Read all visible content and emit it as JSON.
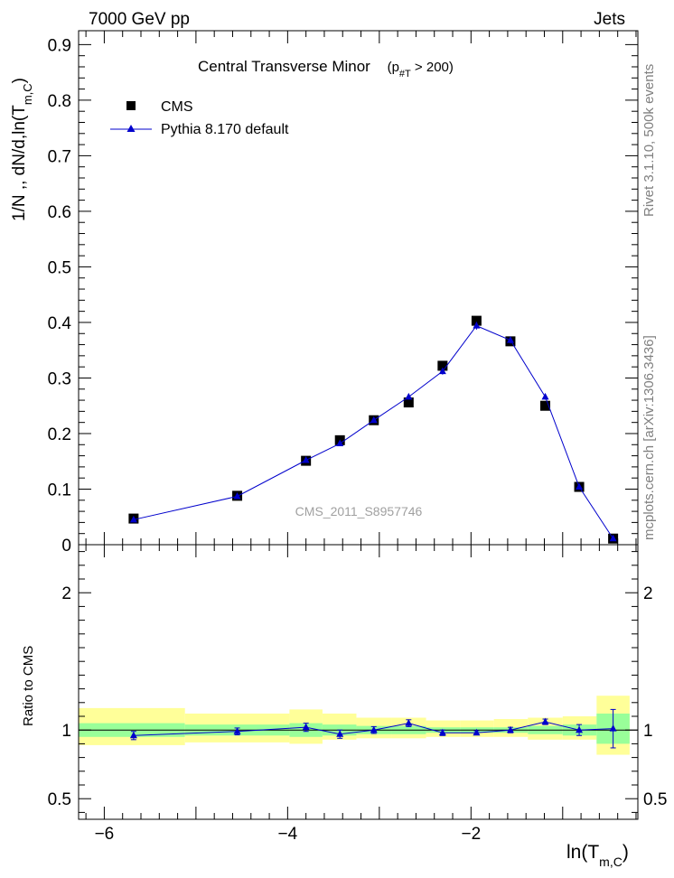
{
  "header": {
    "left": "7000 GeV pp",
    "right": "Jets"
  },
  "side_labels": {
    "rivet": "Rivet 3.1.10,  500k events",
    "mcplots": "mcplots.cern.ch [arXiv:1306.3436]"
  },
  "watermark": "CMS_2011_S8957746",
  "colors": {
    "mc": "#0000cc",
    "data": "#000000",
    "band_inner": "#99ff99",
    "band_outer": "#ffff99"
  },
  "chart_data": [
    {
      "type": "scatter",
      "panel": "main",
      "title": "Central Transverse Minor",
      "title_cut": "(p",
      "title_cut_sub": "#T",
      "title_cut_tail": " > 200)",
      "ylabel": "1/N ,, dN/d,ln(T",
      "ylabel_sub": "m,C",
      "ylabel_tail": ")",
      "ylim": [
        0,
        0.925
      ],
      "xlim": [
        -6.28,
        -0.18
      ],
      "y_ticks": [
        0,
        0.1,
        0.2,
        0.3,
        0.4,
        0.5,
        0.6,
        0.7,
        0.8,
        0.9
      ],
      "y_tick_labels": [
        "0",
        "0.1",
        "0.2",
        "0.3",
        "0.4",
        "0.5",
        "0.6",
        "0.7",
        "0.8",
        "0.9"
      ],
      "legend": {
        "position": "top-left",
        "data_label": "CMS",
        "mc_label": "Pythia 8.170 default"
      },
      "series": [
        {
          "name": "CMS",
          "style": "square",
          "x": [
            -5.68,
            -4.55,
            -3.8,
            -3.43,
            -3.06,
            -2.68,
            -2.31,
            -1.94,
            -1.57,
            -1.19,
            -0.82,
            -0.45
          ],
          "y": [
            0.047,
            0.088,
            0.151,
            0.188,
            0.224,
            0.256,
            0.322,
            0.403,
            0.366,
            0.25,
            0.104,
            0.011
          ]
        },
        {
          "name": "Pythia 8.170 default",
          "style": "triangle-line",
          "x": [
            -5.68,
            -4.55,
            -3.8,
            -3.43,
            -3.06,
            -2.68,
            -2.31,
            -1.94,
            -1.57,
            -1.19,
            -0.82,
            -0.45
          ],
          "y": [
            0.045,
            0.087,
            0.152,
            0.182,
            0.224,
            0.266,
            0.312,
            0.394,
            0.368,
            0.266,
            0.104,
            0.011
          ],
          "err": [
            0.002,
            0.002,
            0.003,
            0.004,
            0.004,
            0.005,
            0.006,
            0.007,
            0.006,
            0.005,
            0.003,
            0.001
          ]
        }
      ]
    },
    {
      "type": "scatter",
      "panel": "ratio",
      "ylabel": "Ratio to CMS",
      "xlabel": "ln(T",
      "xlabel_sub": "m,C",
      "xlabel_tail": ")",
      "ylim": [
        0.35,
        2.35
      ],
      "xlim": [
        -6.28,
        -0.18
      ],
      "y_ticks": [
        0.5,
        1,
        2
      ],
      "y_tick_labels": [
        "0.5",
        "1",
        "2"
      ],
      "x_ticks": [
        -6,
        -4,
        -2
      ],
      "x_tick_labels": [
        "−6",
        "−4",
        "−2"
      ],
      "bins": [
        {
          "lo": -6.28,
          "hi": -5.12,
          "inner": [
            0.95,
            1.05
          ],
          "outer": [
            0.89,
            1.16
          ]
        },
        {
          "lo": -5.12,
          "hi": -3.98,
          "inner": [
            0.96,
            1.04
          ],
          "outer": [
            0.91,
            1.12
          ]
        },
        {
          "lo": -3.98,
          "hi": -3.62,
          "inner": [
            0.95,
            1.05
          ],
          "outer": [
            0.9,
            1.15
          ]
        },
        {
          "lo": -3.62,
          "hi": -3.25,
          "inner": [
            0.96,
            1.04
          ],
          "outer": [
            0.93,
            1.12
          ]
        },
        {
          "lo": -3.25,
          "hi": -2.87,
          "inner": [
            0.97,
            1.03
          ],
          "outer": [
            0.94,
            1.09
          ]
        },
        {
          "lo": -2.87,
          "hi": -2.49,
          "inner": [
            0.97,
            1.03
          ],
          "outer": [
            0.94,
            1.09
          ]
        },
        {
          "lo": -2.49,
          "hi": -2.12,
          "inner": [
            0.98,
            1.02
          ],
          "outer": [
            0.95,
            1.07
          ]
        },
        {
          "lo": -2.12,
          "hi": -1.75,
          "inner": [
            0.98,
            1.02
          ],
          "outer": [
            0.95,
            1.07
          ]
        },
        {
          "lo": -1.75,
          "hi": -1.38,
          "inner": [
            0.98,
            1.02
          ],
          "outer": [
            0.95,
            1.08
          ]
        },
        {
          "lo": -1.38,
          "hi": -1.0,
          "inner": [
            0.97,
            1.03
          ],
          "outer": [
            0.93,
            1.09
          ]
        },
        {
          "lo": -1.0,
          "hi": -0.63,
          "inner": [
            0.96,
            1.04
          ],
          "outer": [
            0.93,
            1.1
          ]
        },
        {
          "lo": -0.63,
          "hi": -0.27,
          "inner": [
            0.9,
            1.12
          ],
          "outer": [
            0.82,
            1.25
          ]
        }
      ],
      "series": [
        {
          "name": "Pythia 8.170 default",
          "x": [
            -5.68,
            -4.55,
            -3.8,
            -3.43,
            -3.06,
            -2.68,
            -2.31,
            -1.94,
            -1.57,
            -1.19,
            -0.82,
            -0.45
          ],
          "y": [
            0.96,
            0.99,
            1.02,
            0.97,
            1.0,
            1.05,
            0.98,
            0.98,
            1.0,
            1.06,
            1.0,
            1.01
          ],
          "err": [
            0.03,
            0.025,
            0.03,
            0.03,
            0.025,
            0.025,
            0.02,
            0.015,
            0.02,
            0.02,
            0.04,
            0.14
          ]
        }
      ]
    }
  ]
}
